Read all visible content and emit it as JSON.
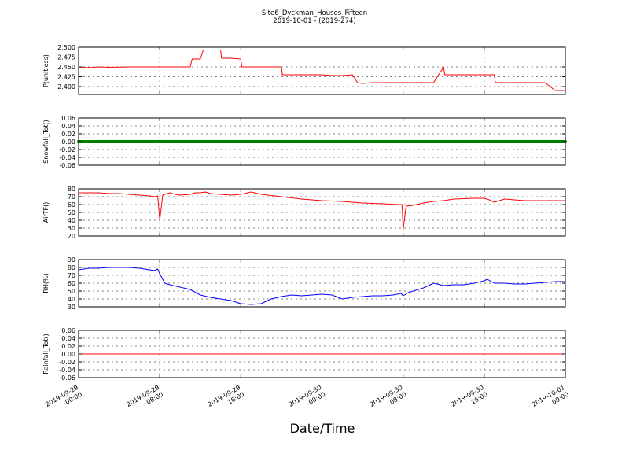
{
  "figure": {
    "title": "Site6_Dyckman_Houses_Fifteen",
    "subtitle": "2019-10-01 - (2019-274)",
    "xlabel": "Date/Time"
  },
  "chart_data": [
    {
      "type": "line",
      "ylabel": "P(unitless)",
      "ylim": [
        2.38,
        2.5
      ],
      "yticks": [
        "2.500",
        "2.475",
        "2.450",
        "2.425",
        "2.400"
      ],
      "yticks_values": [
        2.5,
        2.475,
        2.45,
        2.425,
        2.4
      ],
      "grid": true,
      "color": "#ff0000",
      "x_hours": [
        0,
        1,
        2,
        3,
        5,
        7,
        9,
        11,
        11.2,
        12,
        12.3,
        14,
        14.1,
        15,
        16,
        16.1,
        18,
        19,
        20,
        20.1,
        22,
        24,
        25,
        26,
        27,
        27.5,
        28,
        29,
        31,
        33,
        35,
        36,
        36.1,
        38,
        40,
        41,
        41.1,
        42,
        44,
        46,
        47,
        48
      ],
      "values": [
        2.45,
        2.448,
        2.45,
        2.449,
        2.45,
        2.45,
        2.45,
        2.45,
        2.47,
        2.47,
        2.493,
        2.493,
        2.472,
        2.472,
        2.47,
        2.45,
        2.45,
        2.45,
        2.45,
        2.43,
        2.43,
        2.43,
        2.428,
        2.428,
        2.43,
        2.41,
        2.408,
        2.41,
        2.41,
        2.41,
        2.41,
        2.45,
        2.43,
        2.43,
        2.43,
        2.43,
        2.41,
        2.41,
        2.41,
        2.41,
        2.39,
        2.39
      ]
    },
    {
      "type": "line",
      "ylabel": "Snowfall_Tot()",
      "ylim": [
        -0.06,
        0.06
      ],
      "yticks": [
        "0.06",
        "0.04",
        "0.02",
        "0.00",
        "-0.02",
        "-0.04",
        "-0.06"
      ],
      "yticks_values": [
        0.06,
        0.04,
        0.02,
        0,
        -0.02,
        -0.04,
        -0.06
      ],
      "grid": true,
      "color": "#008000",
      "marker": "dot",
      "x_hours": [
        0,
        48
      ],
      "values": [
        0,
        0
      ]
    },
    {
      "type": "line",
      "ylabel": "AirTF()",
      "ylim": [
        20,
        80
      ],
      "yticks": [
        "80",
        "70",
        "60",
        "50",
        "40",
        "30",
        "20"
      ],
      "yticks_values": [
        80,
        70,
        60,
        50,
        40,
        30,
        20
      ],
      "grid": true,
      "color": "#ff0000",
      "x_hours": [
        0,
        2,
        3,
        4,
        5,
        6,
        7,
        7.5,
        7.8,
        8,
        8.3,
        9,
        9.5,
        10,
        11,
        11.5,
        12,
        12.5,
        13,
        14,
        15,
        16,
        17,
        18,
        20,
        22,
        24,
        26,
        28,
        30,
        31.6,
        31.9,
        32,
        32.3,
        33,
        34,
        35,
        36,
        37,
        39,
        40,
        40.5,
        41,
        42,
        44,
        46,
        48
      ],
      "values": [
        75,
        75,
        74,
        74,
        73,
        72,
        71,
        70,
        71,
        40,
        72,
        75,
        73,
        72,
        73,
        75,
        75,
        76,
        74,
        73,
        72,
        73,
        76,
        73,
        70,
        67,
        65,
        64,
        62,
        61,
        60,
        60,
        28,
        58,
        59,
        62,
        64,
        65,
        67,
        68,
        68,
        66,
        63,
        67,
        65,
        65,
        65
      ]
    },
    {
      "type": "line",
      "ylabel": "RH(%)",
      "ylim": [
        30,
        90
      ],
      "yticks": [
        "90",
        "80",
        "70",
        "60",
        "50",
        "40",
        "30"
      ],
      "yticks_values": [
        90,
        80,
        70,
        60,
        50,
        40,
        30
      ],
      "grid": true,
      "color": "#0000ff",
      "x_hours": [
        0,
        1,
        2,
        3,
        4,
        5,
        6,
        7,
        7.5,
        7.8,
        8,
        8.5,
        9,
        10,
        11,
        12,
        13,
        14,
        15,
        16,
        17,
        18,
        19,
        20,
        21,
        22,
        23,
        24,
        25,
        26,
        27,
        28,
        29,
        30,
        31,
        31.8,
        32,
        32.5,
        33,
        34,
        35,
        36,
        37,
        38,
        39,
        40,
        40.3,
        41,
        42,
        43,
        44,
        45,
        46,
        47,
        48
      ],
      "values": [
        77,
        79,
        79,
        80,
        80,
        80,
        79,
        77,
        76,
        78,
        72,
        60,
        58,
        55,
        52,
        45,
        42,
        40,
        38,
        34,
        33,
        34,
        40,
        43,
        45,
        44,
        45,
        46,
        45,
        40,
        42,
        43,
        44,
        44,
        45,
        47,
        44,
        48,
        50,
        54,
        60,
        57,
        58,
        58,
        60,
        63,
        65,
        60,
        60,
        59,
        59,
        60,
        61,
        62,
        62
      ]
    },
    {
      "type": "line",
      "ylabel": "Rainfall_Tot()",
      "ylim": [
        -0.06,
        0.06
      ],
      "yticks": [
        "0.06",
        "0.04",
        "0.02",
        "0.00",
        "-0.02",
        "-0.04",
        "-0.06"
      ],
      "yticks_values": [
        0.06,
        0.04,
        0.02,
        0,
        -0.02,
        -0.04,
        -0.06
      ],
      "grid": true,
      "color": "#ff0000",
      "x_hours": [
        0,
        48
      ],
      "values": [
        0,
        0
      ]
    }
  ],
  "x_axis": {
    "range_hours": [
      0,
      48
    ],
    "ticks_hours": [
      0,
      8,
      16,
      24,
      32,
      40,
      48
    ],
    "tick_labels": [
      [
        "2019-09-29",
        "00:00"
      ],
      [
        "2019-09-29",
        "08:00"
      ],
      [
        "2019-09-29",
        "16:00"
      ],
      [
        "2019-09-30",
        "00:00"
      ],
      [
        "2019-09-30",
        "08:00"
      ],
      [
        "2019-09-30",
        "16:00"
      ],
      [
        "2019-10-01",
        "00:00"
      ]
    ]
  }
}
